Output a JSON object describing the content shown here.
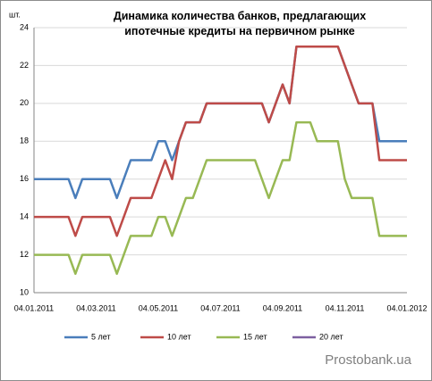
{
  "chart_data": {
    "type": "line",
    "title": "Динамика количества банков, предлагающих ипотечные кредиты на первичном рынке",
    "y_label": "шт.",
    "source": "Prostobank.ua",
    "categories": [
      "04.01.2011",
      null,
      null,
      null,
      null,
      null,
      null,
      null,
      null,
      "04.03.2011",
      null,
      null,
      null,
      null,
      null,
      null,
      null,
      null,
      "04.05.2011",
      null,
      null,
      null,
      null,
      null,
      null,
      null,
      null,
      "04.07.2011",
      null,
      null,
      null,
      null,
      null,
      null,
      null,
      null,
      "04.09.2011",
      null,
      null,
      null,
      null,
      null,
      null,
      null,
      null,
      "04.11.2011",
      null,
      null,
      null,
      null,
      null,
      null,
      null,
      null,
      "04.01.2012"
    ],
    "series": [
      {
        "name": "5 лет",
        "color": "#4a7ebb",
        "values": [
          16,
          16,
          16,
          16,
          16,
          16,
          15,
          16,
          16,
          16,
          16,
          16,
          15,
          16,
          17,
          17,
          17,
          17,
          18,
          18,
          17,
          18,
          19,
          19,
          19,
          20,
          20,
          20,
          20,
          20,
          20,
          20,
          20,
          20,
          19,
          20,
          21,
          20,
          23,
          23,
          23,
          23,
          23,
          23,
          23,
          22,
          21,
          20,
          20,
          20,
          18,
          18,
          18,
          18,
          18
        ]
      },
      {
        "name": "10 лет",
        "color": "#be4b48",
        "values": [
          14,
          14,
          14,
          14,
          14,
          14,
          13,
          14,
          14,
          14,
          14,
          14,
          13,
          14,
          15,
          15,
          15,
          15,
          16,
          17,
          16,
          18,
          19,
          19,
          19,
          20,
          20,
          20,
          20,
          20,
          20,
          20,
          20,
          20,
          19,
          20,
          21,
          20,
          23,
          23,
          23,
          23,
          23,
          23,
          23,
          22,
          21,
          20,
          20,
          20,
          17,
          17,
          17,
          17,
          17
        ]
      },
      {
        "name": "15 лет",
        "color": "#98b954",
        "values": [
          12,
          12,
          12,
          12,
          12,
          12,
          11,
          12,
          12,
          12,
          12,
          12,
          11,
          12,
          13,
          13,
          13,
          13,
          14,
          14,
          13,
          14,
          15,
          15,
          16,
          17,
          17,
          17,
          17,
          17,
          17,
          17,
          17,
          16,
          15,
          16,
          17,
          17,
          19,
          19,
          19,
          18,
          18,
          18,
          18,
          16,
          15,
          15,
          15,
          15,
          13,
          13,
          13,
          13,
          13
        ]
      },
      {
        "name": "20 лет",
        "color": "#7d60a0",
        "values": [
          null,
          null,
          null,
          null,
          null,
          null,
          null,
          null,
          null,
          null,
          null,
          null,
          null,
          null,
          null,
          null,
          null,
          null,
          null,
          null,
          null,
          null,
          null,
          null,
          null,
          null,
          null,
          null,
          null,
          null,
          null,
          null,
          null,
          null,
          null,
          null,
          null,
          null,
          null,
          null,
          null,
          null,
          null,
          null,
          null,
          null,
          null,
          null,
          null,
          null,
          null,
          null,
          null,
          null,
          null
        ]
      }
    ],
    "ylim": [
      10,
      24
    ],
    "yticks": [
      10,
      12,
      14,
      16,
      18,
      20,
      22,
      24
    ],
    "grid": true,
    "legend": "bottom"
  }
}
